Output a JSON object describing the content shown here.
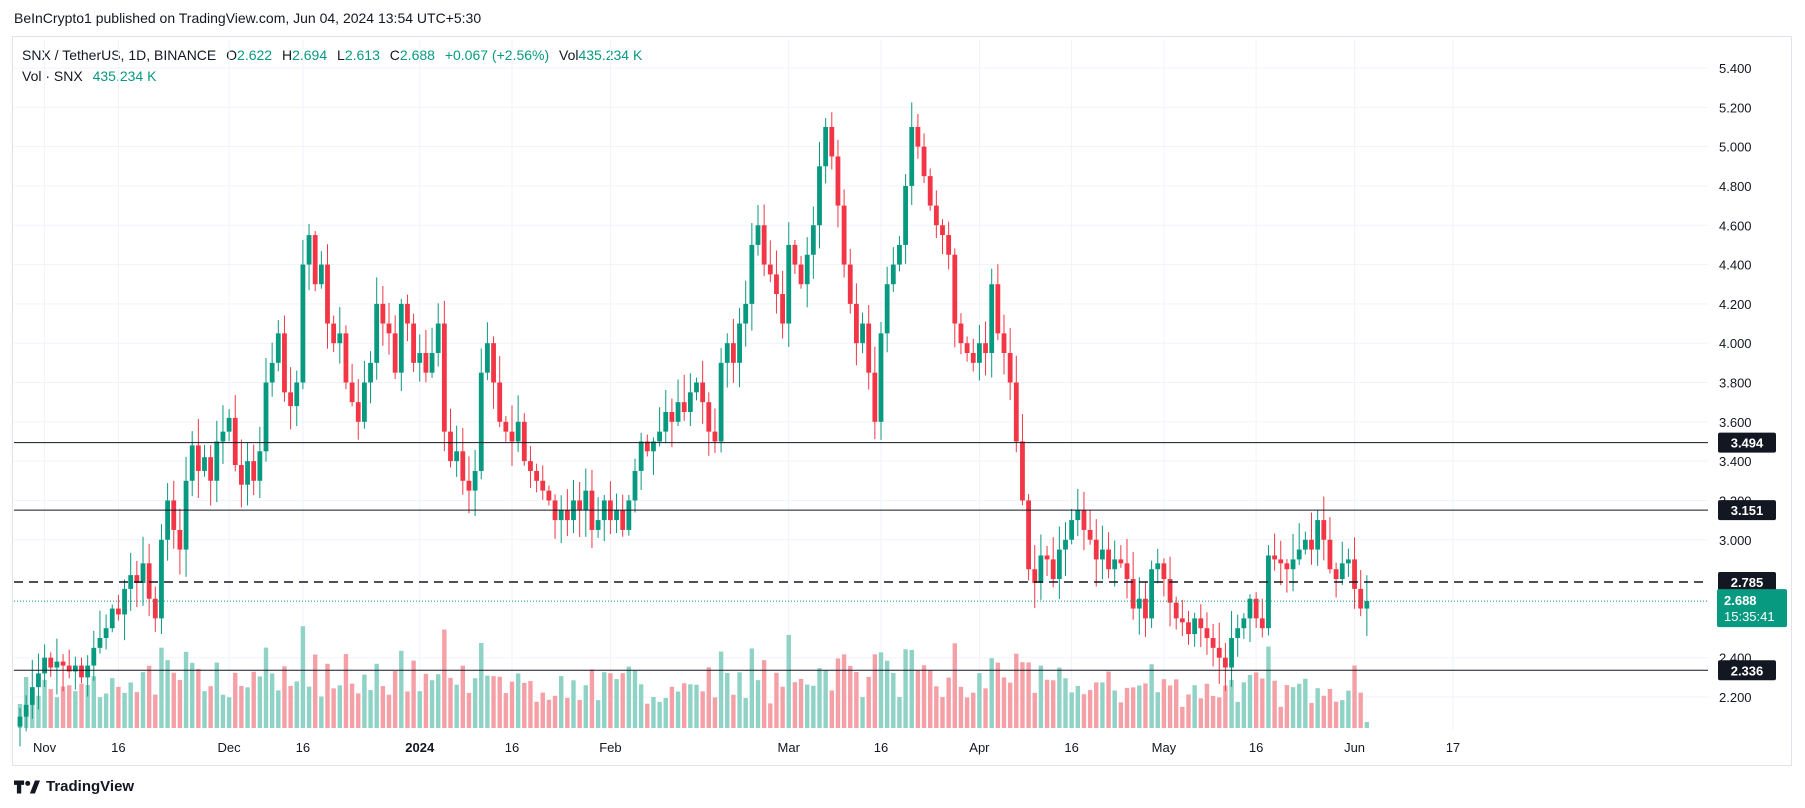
{
  "header": {
    "published": "BeInCrypto1 published on TradingView.com, Jun 04, 2024 13:54 UTC+5:30"
  },
  "legend": {
    "symbol": "SNX / TetherUS, 1D, BINANCE",
    "o_label": "O",
    "o_value": "2.622",
    "h_label": "H",
    "h_value": "2.694",
    "l_label": "L",
    "l_value": "2.613",
    "c_label": "C",
    "c_value": "2.688",
    "change": "+0.067 (+2.56%)",
    "vol_label": "Vol",
    "vol_value": "435.234 K",
    "vol_row_label": "Vol · SNX",
    "vol_row_value": "435.234 K"
  },
  "brand": {
    "name": "TradingView"
  },
  "colors": {
    "up": "#089981",
    "down": "#f23645",
    "vol_up": "#8fd2c6",
    "vol_down": "#f5a0a6",
    "grid": "#f0f3fa",
    "level": "#131722",
    "last_price": "#089981"
  },
  "chart_data": {
    "type": "candlestick",
    "title": "",
    "xlabel": "",
    "ylabel": "",
    "ylim": [
      2.08,
      5.5
    ],
    "y_ticks": [
      "5.400",
      "5.200",
      "5.000",
      "4.800",
      "4.600",
      "4.400",
      "4.200",
      "4.000",
      "3.800",
      "3.600",
      "3.400",
      "3.200",
      "3.000",
      "2.400",
      "2.200"
    ],
    "x_ticks": [
      {
        "label": "Nov",
        "day": 4,
        "bold": false
      },
      {
        "label": "16",
        "day": 16,
        "bold": false
      },
      {
        "label": "Dec",
        "day": 34,
        "bold": false
      },
      {
        "label": "16",
        "day": 46,
        "bold": false
      },
      {
        "label": "2024",
        "day": 65,
        "bold": true
      },
      {
        "label": "16",
        "day": 80,
        "bold": false
      },
      {
        "label": "Feb",
        "day": 96,
        "bold": false
      },
      {
        "label": "Mar",
        "day": 125,
        "bold": false
      },
      {
        "label": "16",
        "day": 140,
        "bold": false
      },
      {
        "label": "Apr",
        "day": 156,
        "bold": false
      },
      {
        "label": "16",
        "day": 171,
        "bold": false
      },
      {
        "label": "May",
        "day": 186,
        "bold": false
      },
      {
        "label": "16",
        "day": 201,
        "bold": false
      },
      {
        "label": "Jun",
        "day": 217,
        "bold": false
      },
      {
        "label": "17",
        "day": 233,
        "bold": false
      }
    ],
    "levels": [
      {
        "value": 3.494,
        "label": "3.494",
        "style": "solid"
      },
      {
        "value": 3.151,
        "label": "3.151",
        "style": "solid"
      },
      {
        "value": 2.785,
        "label": "2.785",
        "style": "dashed"
      },
      {
        "value": 2.336,
        "label": "2.336",
        "style": "solid"
      }
    ],
    "last_price": {
      "value": 2.688,
      "label": "2.688",
      "countdown": "15:35:41"
    },
    "closes": [
      2.1,
      2.16,
      2.25,
      2.32,
      2.4,
      2.35,
      2.38,
      2.36,
      2.33,
      2.36,
      2.3,
      2.36,
      2.45,
      2.5,
      2.55,
      2.65,
      2.62,
      2.75,
      2.82,
      2.78,
      2.88,
      2.7,
      2.6,
      3.0,
      3.2,
      3.05,
      2.95,
      3.3,
      3.48,
      3.35,
      3.42,
      3.3,
      3.5,
      3.55,
      3.62,
      3.38,
      3.28,
      3.4,
      3.3,
      3.45,
      3.8,
      3.9,
      4.05,
      3.75,
      3.68,
      3.8,
      4.4,
      4.55,
      4.3,
      4.4,
      4.1,
      4.0,
      4.05,
      3.8,
      3.7,
      3.6,
      3.8,
      3.9,
      4.2,
      4.1,
      4.05,
      3.85,
      4.2,
      4.1,
      3.9,
      3.95,
      3.85,
      3.95,
      4.1,
      3.55,
      3.4,
      3.45,
      3.3,
      3.25,
      3.35,
      3.85,
      4.0,
      3.8,
      3.6,
      3.55,
      3.5,
      3.6,
      3.4,
      3.35,
      3.3,
      3.25,
      3.2,
      3.1,
      3.15,
      3.1,
      3.2,
      3.15,
      3.25,
      3.05,
      3.1,
      3.2,
      3.1,
      3.15,
      3.05,
      3.2,
      3.35,
      3.5,
      3.45,
      3.5,
      3.55,
      3.65,
      3.6,
      3.7,
      3.65,
      3.75,
      3.8,
      3.7,
      3.55,
      3.5,
      3.9,
      4.0,
      3.9,
      4.1,
      4.2,
      4.5,
      4.6,
      4.4,
      4.35,
      4.25,
      4.1,
      4.5,
      4.4,
      4.3,
      4.45,
      4.6,
      4.9,
      5.1,
      4.95,
      4.7,
      4.4,
      4.2,
      4.0,
      4.1,
      3.85,
      3.6,
      4.05,
      4.3,
      4.4,
      4.5,
      4.8,
      5.1,
      5.0,
      4.85,
      4.7,
      4.6,
      4.55,
      4.45,
      4.1,
      4.0,
      3.95,
      3.9,
      4.0,
      3.95,
      4.3,
      4.05,
      3.95,
      3.8,
      3.5,
      3.2,
      2.85,
      2.78,
      2.92,
      2.9,
      2.8,
      2.95,
      3.0,
      3.1,
      3.15,
      3.05,
      3.0,
      2.9,
      2.95,
      2.85,
      2.9,
      2.88,
      2.8,
      2.65,
      2.7,
      2.6,
      2.85,
      2.88,
      2.8,
      2.68,
      2.6,
      2.58,
      2.52,
      2.6,
      2.55,
      2.5,
      2.45,
      2.4,
      2.35,
      2.5,
      2.55,
      2.6,
      2.7,
      2.6,
      2.55,
      2.92,
      2.9,
      2.88,
      2.85,
      2.9,
      2.95,
      3.0,
      2.95,
      3.1,
      3.0,
      2.85,
      2.8,
      2.88,
      2.9,
      2.75,
      2.65,
      2.688
    ],
    "volume": {
      "max": 1.0,
      "ylim_px_note": ""
    }
  }
}
